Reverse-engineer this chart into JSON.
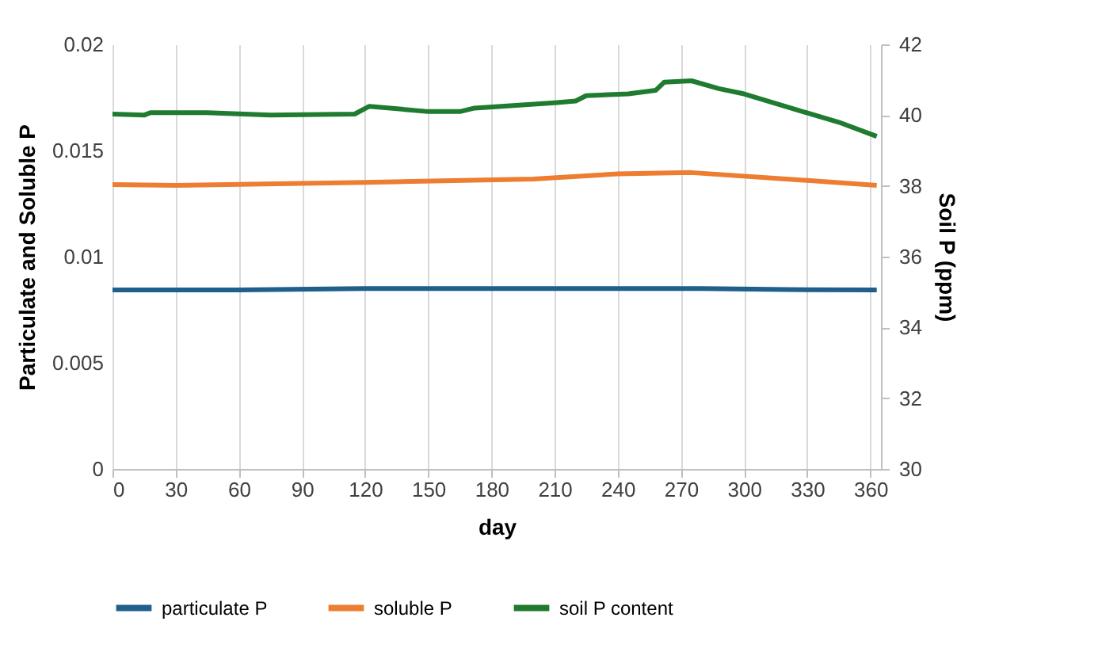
{
  "chart_data": {
    "type": "line",
    "xlabel": "day",
    "ylabel": "Particulate and Soluble P",
    "y2label": "Soil P (ppm)",
    "xlim": [
      0,
      365
    ],
    "xticks": [
      0,
      30,
      60,
      90,
      120,
      150,
      180,
      210,
      240,
      270,
      300,
      330,
      360
    ],
    "ylim": [
      0,
      0.02
    ],
    "yticks": [
      0,
      0.005,
      0.01,
      0.015,
      0.02
    ],
    "y2lim": [
      30,
      42
    ],
    "y2ticks": [
      30,
      32,
      34,
      36,
      38,
      40,
      42
    ],
    "grid": "x",
    "legend": "bottom",
    "line_style": "solid",
    "marker": "none",
    "series": [
      {
        "name": "particulate P",
        "color": "#1f5f8b",
        "x": [
          0,
          60,
          120,
          180,
          240,
          280,
          320,
          363
        ],
        "values": [
          0.00843,
          0.00843,
          0.0085,
          0.0085,
          0.0085,
          0.0085,
          0.00845,
          0.00843
        ]
      },
      {
        "name": "soluble P",
        "color": "#ed7d31",
        "x": [
          0,
          30,
          120,
          200,
          240,
          275,
          320,
          363
        ],
        "values": [
          0.0134,
          0.01336,
          0.0135,
          0.01366,
          0.0139,
          0.01396,
          0.01366,
          0.01336
        ]
      },
      {
        "name": "soil P content",
        "color": "#1e7b30",
        "axis": "y2",
        "x": [
          0,
          15,
          18,
          45,
          75,
          115,
          122,
          150,
          165,
          172,
          210,
          220,
          225,
          245,
          258,
          262,
          275,
          288,
          300,
          325,
          345,
          363
        ],
        "values": [
          40.03,
          40.0,
          40.07,
          40.07,
          40.0,
          40.03,
          40.25,
          40.1,
          40.1,
          40.2,
          40.35,
          40.4,
          40.55,
          40.6,
          40.7,
          40.93,
          40.97,
          40.75,
          40.6,
          40.15,
          39.8,
          39.4
        ]
      }
    ]
  }
}
